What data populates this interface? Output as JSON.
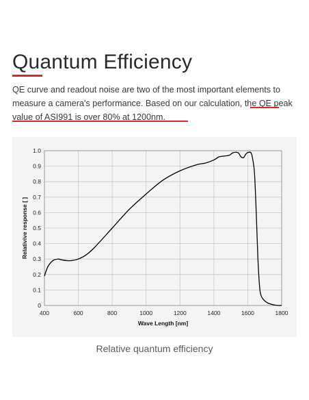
{
  "heading": {
    "title": "Quantum Efficiency",
    "intro_plain": "QE curve and readout noise are two of the most important elements to measure a camera's performance. Based on our calculation, ",
    "intro_highlight": "the QE peak value of ASI991 is over 80% at 1200nm."
  },
  "caption": "Relative quantum efficiency",
  "colors": {
    "accent": "#d8262e",
    "panel_bg": "#f4f4f4",
    "curve": "#000000",
    "grid": "#c8c8c8"
  },
  "chart_data": {
    "type": "line",
    "xlabel": "Wave Length [nm]",
    "ylabel": "Relativive response [ ]",
    "xlim": [
      400,
      1800
    ],
    "ylim": [
      0,
      1.0
    ],
    "x_ticks": [
      400,
      600,
      800,
      1000,
      1200,
      1400,
      1600,
      1800
    ],
    "x_tick_labels": [
      "400",
      "600",
      "800",
      "1000",
      "1200",
      "1400",
      "1600",
      "1800"
    ],
    "y_ticks": [
      0,
      0.1,
      0.2,
      0.3,
      0.4,
      0.5,
      0.6,
      0.7,
      0.8,
      0.9,
      1.0
    ],
    "y_tick_labels": [
      "0",
      "0.1",
      "0.2",
      "0.3",
      "0.4",
      "0.5",
      "0.6",
      "0.7",
      "0.8",
      "0.9",
      "1.0"
    ],
    "grid": true,
    "series": [
      {
        "x": [
          400,
          420,
          450,
          480,
          500,
          530,
          560,
          600,
          650,
          700,
          800,
          900,
          1000,
          1100,
          1200,
          1300,
          1350,
          1400,
          1430,
          1460,
          1490,
          1510,
          1530,
          1545,
          1560,
          1575,
          1590,
          1605,
          1620,
          1630,
          1640,
          1650,
          1660,
          1670,
          1680,
          1700,
          1720,
          1750,
          1780,
          1800
        ],
        "y": [
          0.19,
          0.25,
          0.29,
          0.3,
          0.295,
          0.29,
          0.29,
          0.3,
          0.33,
          0.38,
          0.5,
          0.62,
          0.72,
          0.81,
          0.87,
          0.91,
          0.92,
          0.94,
          0.96,
          0.965,
          0.97,
          0.985,
          0.99,
          0.985,
          0.96,
          0.955,
          0.98,
          0.99,
          0.985,
          0.94,
          0.85,
          0.6,
          0.3,
          0.12,
          0.06,
          0.03,
          0.015,
          0.005,
          0.0,
          0.0
        ]
      }
    ]
  }
}
